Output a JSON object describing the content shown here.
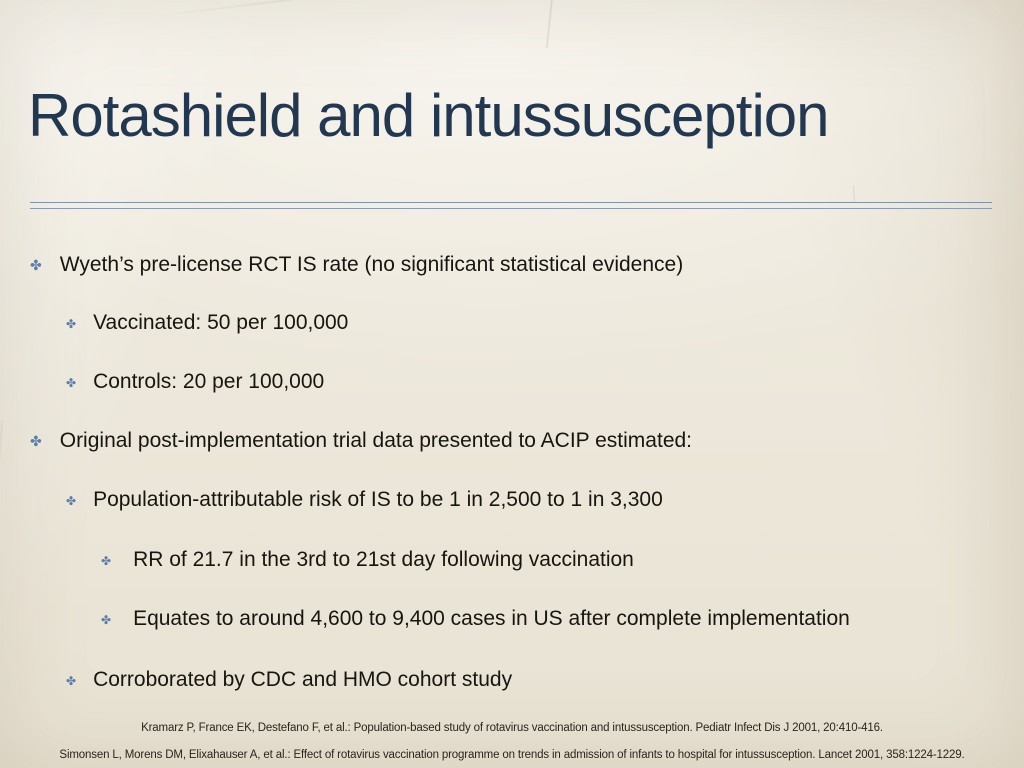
{
  "slide": {
    "title": "Rotashield and intussusception",
    "bullet_icon": {
      "name": "four-petal-asterisk",
      "glyph": "✤"
    },
    "bullets": [
      {
        "level": 1,
        "text": "Wyeth’s pre-license RCT IS rate (no significant statistical evidence)"
      },
      {
        "level": 2,
        "text": "Vaccinated: 50 per 100,000"
      },
      {
        "level": 2,
        "text": "Controls: 20 per 100,000"
      },
      {
        "level": 1,
        "text": "Original post-implementation trial data presented to ACIP estimated:"
      },
      {
        "level": 2,
        "text": "Population-attributable risk of IS to be 1 in 2,500 to 1 in 3,300"
      },
      {
        "level": 3,
        "text": "RR of 21.7 in the 3rd to 21st day following vaccination"
      },
      {
        "level": 3,
        "text": "Equates to around 4,600 to 9,400 cases in US after complete implementation"
      },
      {
        "level": 2,
        "text": "Corroborated by CDC and HMO cohort study"
      }
    ],
    "citations": [
      "Kramarz P, France EK, Destefano F, et al.: Population-based study of rotavirus vaccination and intussusception. Pediatr Infect Dis J 2001, 20:410-416.",
      "Simonsen L, Morens DM, Elixahauser A, et al.: Effect of rotavirus vaccination programme on trends in admission of infants to hospital for intussusception. Lancet 2001, 358:1224-1229."
    ],
    "colors": {
      "background": "#ece7da",
      "title": "#223851",
      "body_text": "#17150f",
      "bullet": "#5b7ea7",
      "divider": "#8193a9"
    }
  }
}
